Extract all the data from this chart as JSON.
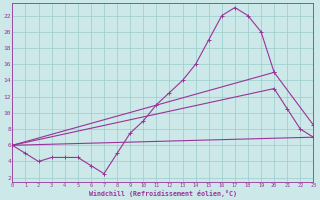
{
  "background_color": "#cce8e8",
  "grid_color": "#99cccc",
  "line_color": "#993399",
  "xlabel": "Windchill (Refroidissement éolien,°C)",
  "xlim": [
    0,
    23
  ],
  "ylim": [
    1.5,
    23.5
  ],
  "yticks": [
    2,
    4,
    6,
    8,
    10,
    12,
    14,
    16,
    18,
    20,
    22
  ],
  "line1": {
    "x": [
      0,
      1,
      2,
      3,
      4,
      5,
      6,
      7,
      8,
      9,
      10,
      11,
      12,
      13,
      14,
      15,
      16,
      17,
      18,
      19,
      20
    ],
    "y": [
      6,
      5,
      4,
      4.5,
      4.5,
      4.5,
      3.5,
      2.5,
      5,
      7.5,
      9,
      11,
      12.5,
      14,
      16,
      19,
      22,
      23,
      22,
      20,
      15
    ]
  },
  "line2": {
    "x": [
      0,
      20,
      23
    ],
    "y": [
      6,
      15,
      8.5
    ]
  },
  "line3": {
    "x": [
      0,
      20,
      21,
      22,
      23
    ],
    "y": [
      6,
      13,
      10.5,
      8,
      7
    ]
  },
  "line4": {
    "x": [
      0,
      23
    ],
    "y": [
      6,
      7
    ]
  }
}
